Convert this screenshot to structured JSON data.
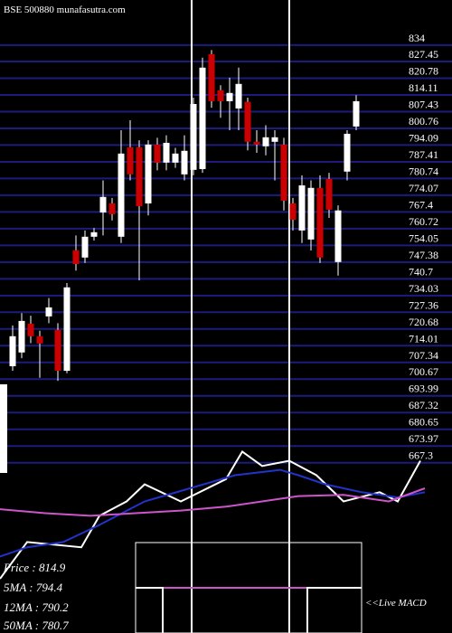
{
  "chart_data": {
    "type": "candlestick",
    "title": "BSE 500880 munafasutra.com",
    "xlim": [
      -1.4,
      48.6
    ],
    "ylim": [
      664.3,
      852
    ],
    "yticks": [
      834,
      827.45,
      820.78,
      814.11,
      807.43,
      800.76,
      794.09,
      787.41,
      780.74,
      774.07,
      767.4,
      760.72,
      754.05,
      747.38,
      740.7,
      734.03,
      727.36,
      720.68,
      714.01,
      707.34,
      700.67,
      693.99,
      687.32,
      680.65,
      673.97,
      667.3
    ],
    "grid": true,
    "up_color": "#ffffff",
    "down_color": "#cc0000",
    "grid_color": "#1c1c7c",
    "open": [
      705.8,
      711.3,
      722.8,
      717.8,
      725.7,
      720.3,
      704.0,
      752.1,
      749.2,
      757.5,
      767.2,
      770.8,
      757.5,
      793.2,
      793.2,
      770.8,
      794.3,
      787.1,
      787.1,
      782.4,
      784.2,
      784.5,
      830.4,
      816.0,
      811.6,
      808.7,
      811.3,
      795.4,
      793.6,
      795.4,
      794.3,
      770.8,
      760.0,
      756.4,
      777.0,
      780.6,
      747.4,
      783.5,
      801.5
    ],
    "high": [
      722.1,
      727,
      726,
      720,
      733,
      723,
      739,
      758,
      760,
      761,
      780,
      773,
      800,
      804,
      796,
      796,
      797,
      798,
      793,
      798,
      813,
      829,
      832,
      818,
      821,
      825,
      813,
      800,
      802,
      800,
      797,
      773,
      782,
      780,
      782,
      783,
      770,
      800,
      814
    ],
    "low": [
      704.0,
      709,
      715,
      701.2,
      723,
      700,
      703,
      744,
      747,
      756,
      758,
      764,
      755,
      780,
      740.1,
      766,
      784,
      784,
      785,
      780,
      782,
      783,
      809,
      805,
      800,
      800,
      792,
      791,
      790,
      780,
      768,
      760,
      755,
      752,
      747,
      765,
      742,
      780,
      800
    ],
    "close": [
      717.8,
      723.9,
      717.8,
      714.9,
      729.3,
      704.0,
      737.3,
      746.6,
      757.5,
      759.3,
      773.4,
      766.5,
      790.7,
      782.4,
      769.7,
      794.3,
      787.1,
      795.0,
      790.7,
      791.8,
      810.5,
      825.0,
      811.6,
      811.6,
      814.9,
      818.5,
      795.4,
      794.3,
      797.2,
      797.2,
      771.9,
      764.3,
      778.0,
      777.0,
      749.2,
      768.3,
      768.0,
      798.6,
      811.6
    ],
    "indicator": {
      "ylim": [
        0,
        100
      ],
      "series": [
        {
          "color": "#ffffff",
          "x": [
            -1.4,
            1.6,
            7.6,
            9.6,
            12.6,
            14.6,
            18.6,
            23.6,
            25.4,
            27.6,
            30.6,
            33.6,
            36.6,
            40.6,
            42.6,
            45.1
          ],
          "values": [
            0,
            28,
            24,
            48,
            59,
            72,
            59,
            76,
            97,
            86,
            90,
            79,
            59,
            66,
            59,
            90
          ]
        },
        {
          "color": "#2233cc",
          "x": [
            -1.4,
            1.6,
            5.6,
            9.6,
            14.6,
            19.6,
            24.6,
            29.6,
            31.6,
            34.6,
            38.6,
            42.6,
            45.6
          ],
          "values": [
            17,
            24,
            28,
            41,
            59,
            69,
            79,
            83,
            79,
            72,
            66,
            62,
            66
          ]
        },
        {
          "color": "#cc55cc",
          "x": [
            -1.4,
            3.6,
            8.6,
            13.6,
            18.6,
            23.6,
            31.6,
            36.6,
            41.6,
            45.6
          ],
          "values": [
            53,
            50,
            48,
            50,
            52,
            55,
            63,
            64,
            59,
            69
          ]
        }
      ]
    },
    "legend": [
      "Price  : 814.9",
      "5MA  : 794.4",
      "12MA : 790.2",
      "50MA : 780.7"
    ],
    "macd_label": "<<Live MACD"
  }
}
